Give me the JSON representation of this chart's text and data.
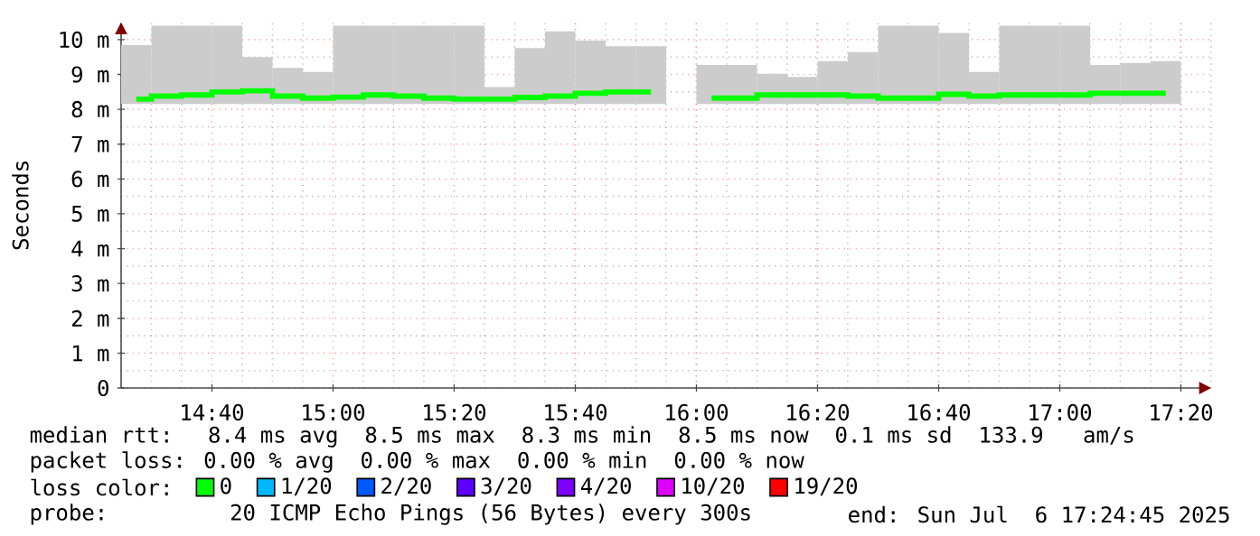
{
  "chart_data": {
    "type": "step",
    "ylabel": "Seconds",
    "x": [
      14.4583,
      14.5417,
      14.625,
      14.7083,
      14.7917,
      14.875,
      14.9583,
      15.0417,
      15.125,
      15.2083,
      15.2917,
      15.375,
      15.4583,
      15.5417,
      15.625,
      15.7083,
      15.7917,
      15.875,
      15.9583,
      16.0417,
      16.125,
      16.2083,
      16.2917,
      16.375,
      16.4583,
      16.5417,
      16.625,
      16.7083,
      16.7917,
      16.875,
      16.9583,
      17.0417,
      17.125,
      17.2083,
      17.2917
    ],
    "xlim": [
      14.4167,
      17.4167
    ],
    "xticks": [
      {
        "value": 14.6667,
        "label": "14:40"
      },
      {
        "value": 15,
        "label": "15:00"
      },
      {
        "value": 15.3333,
        "label": "15:20"
      },
      {
        "value": 15.6667,
        "label": "15:40"
      },
      {
        "value": 16,
        "label": "16:00"
      },
      {
        "value": 16.3333,
        "label": "16:20"
      },
      {
        "value": 16.6667,
        "label": "16:40"
      },
      {
        "value": 17,
        "label": "17:00"
      },
      {
        "value": 17.3333,
        "label": "17:20"
      }
    ],
    "ylim": [
      0,
      10.5
    ],
    "yticks": [
      0,
      {
        "value": 1,
        "label": "1 m"
      },
      {
        "value": 2,
        "label": "2 m"
      },
      {
        "value": 3,
        "label": "3 m"
      },
      {
        "value": 4,
        "label": "4 m"
      },
      {
        "value": 5,
        "label": "5 m"
      },
      {
        "value": 6,
        "label": "6 m"
      },
      {
        "value": 7,
        "label": "7 m"
      },
      {
        "value": 8,
        "label": "8 m"
      },
      {
        "value": 9,
        "label": "9 m"
      },
      {
        "value": 10,
        "label": "10 m"
      }
    ],
    "grid": true,
    "legend": "bottom",
    "legend_title": "loss color:",
    "series": [
      {
        "type": "bar",
        "color": "#cccccc",
        "base": [
          8.15,
          8.15,
          8.15,
          8.15,
          8.15,
          8.15,
          8.15,
          8.15,
          8.15,
          8.15,
          8.15,
          8.15,
          8.15,
          8.15,
          8.15,
          8.15,
          8.15,
          8.15,
          null,
          8.15,
          8.15,
          8.15,
          8.15,
          8.15,
          8.15,
          8.15,
          8.15,
          8.15,
          8.15,
          8.15,
          8.15,
          8.15,
          8.15,
          8.15,
          8.15
        ],
        "values": [
          1.69,
          2.25,
          2.25,
          2.25,
          1.35,
          1.04,
          0.92,
          2.25,
          2.25,
          2.25,
          2.25,
          2.25,
          0.49,
          1.61,
          2.09,
          1.82,
          1.66,
          1.66,
          null,
          1.12,
          1.12,
          0.87,
          0.78,
          1.23,
          1.49,
          2.25,
          2.25,
          2.04,
          0.92,
          2.25,
          2.25,
          2.25,
          1.12,
          1.18,
          1.23
        ]
      },
      {
        "name": "0",
        "color": "#00ff00",
        "values": [
          8.29,
          8.38,
          8.41,
          8.5,
          8.53,
          8.38,
          8.32,
          8.35,
          8.41,
          8.38,
          8.32,
          8.29,
          8.29,
          8.34,
          8.38,
          8.46,
          8.5,
          8.5,
          null,
          8.32,
          8.32,
          8.41,
          8.41,
          8.41,
          8.38,
          8.32,
          8.32,
          8.43,
          8.38,
          8.41,
          8.41,
          8.41,
          8.46,
          8.46,
          8.46
        ]
      },
      {
        "name": "1/20",
        "color": "#00b8ff",
        "values": [
          null,
          null,
          null,
          null,
          null,
          null,
          null,
          null,
          null,
          null,
          null,
          null,
          null,
          null,
          null,
          null,
          null,
          null,
          null,
          null,
          null,
          null,
          null,
          null,
          null,
          null,
          null,
          null,
          null,
          null,
          null,
          null,
          null,
          null,
          null
        ]
      },
      {
        "name": "2/20",
        "color": "#0059ff",
        "values": [
          null,
          null,
          null,
          null,
          null,
          null,
          null,
          null,
          null,
          null,
          null,
          null,
          null,
          null,
          null,
          null,
          null,
          null,
          null,
          null,
          null,
          null,
          null,
          null,
          null,
          null,
          null,
          null,
          null,
          null,
          null,
          null,
          null,
          null,
          null
        ]
      },
      {
        "name": "3/20",
        "color": "#5e00ff",
        "values": [
          null,
          null,
          null,
          null,
          null,
          null,
          null,
          null,
          null,
          null,
          null,
          null,
          null,
          null,
          null,
          null,
          null,
          null,
          null,
          null,
          null,
          null,
          null,
          null,
          null,
          null,
          null,
          null,
          null,
          null,
          null,
          null,
          null,
          null,
          null
        ]
      },
      {
        "name": "4/20",
        "color": "#7e00ff",
        "values": [
          null,
          null,
          null,
          null,
          null,
          null,
          null,
          null,
          null,
          null,
          null,
          null,
          null,
          null,
          null,
          null,
          null,
          null,
          null,
          null,
          null,
          null,
          null,
          null,
          null,
          null,
          null,
          null,
          null,
          null,
          null,
          null,
          null,
          null,
          null
        ]
      },
      {
        "name": "10/20",
        "color": "#dd00ff",
        "values": [
          null,
          null,
          null,
          null,
          null,
          null,
          null,
          null,
          null,
          null,
          null,
          null,
          null,
          null,
          null,
          null,
          null,
          null,
          null,
          null,
          null,
          null,
          null,
          null,
          null,
          null,
          null,
          null,
          null,
          null,
          null,
          null,
          null,
          null,
          null
        ]
      },
      {
        "name": "19/20",
        "color": "#ff0000",
        "values": [
          null,
          null,
          null,
          null,
          null,
          null,
          null,
          null,
          null,
          null,
          null,
          null,
          null,
          null,
          null,
          null,
          null,
          null,
          null,
          null,
          null,
          null,
          null,
          null,
          null,
          null,
          null,
          null,
          null,
          null,
          null,
          null,
          null,
          null,
          null
        ]
      }
    ],
    "annotations": [
      "median rtt:  8.4 ms avg  8.5 ms max  8.3 ms min  8.5 ms now  0.1 ms sd  133.9   am/s",
      "packet loss: 0.00 % avg  0.00 % max  0.00 % min  0.00 % now",
      "probe:       20 ICMP Echo Pings (56 Bytes) every 300s",
      "end: Sun Jul  6 17:24:45 2025"
    ]
  }
}
